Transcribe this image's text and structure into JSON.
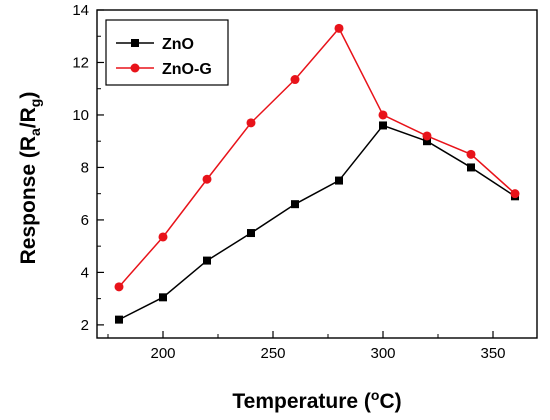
{
  "chart_data": {
    "type": "line",
    "x": [
      180,
      200,
      220,
      240,
      260,
      280,
      300,
      320,
      340,
      360
    ],
    "xlim": [
      170,
      370
    ],
    "ylim": [
      1.5,
      14
    ],
    "xticks": [
      200,
      250,
      300,
      350
    ],
    "yticks": [
      2,
      4,
      6,
      8,
      10,
      12,
      14
    ],
    "xlabel": {
      "prefix": "Temperature (",
      "sup": "o",
      "suffix": "C)"
    },
    "ylabel": {
      "prefix": "Response (R",
      "sub1": "a",
      "mid": "/R",
      "sub2": "g",
      "suffix": ")"
    },
    "legend_position": "top-left",
    "grid": false,
    "series": [
      {
        "name": "ZnO",
        "color": "#000000",
        "marker": "square",
        "values": [
          2.2,
          3.05,
          4.45,
          5.5,
          6.6,
          7.5,
          9.6,
          9.0,
          8.0,
          6.9
        ]
      },
      {
        "name": "ZnO-G",
        "color": "#e8131a",
        "marker": "circle",
        "values": [
          3.45,
          5.35,
          7.55,
          9.7,
          11.35,
          13.3,
          10.0,
          9.2,
          8.5,
          7.0
        ]
      }
    ]
  }
}
